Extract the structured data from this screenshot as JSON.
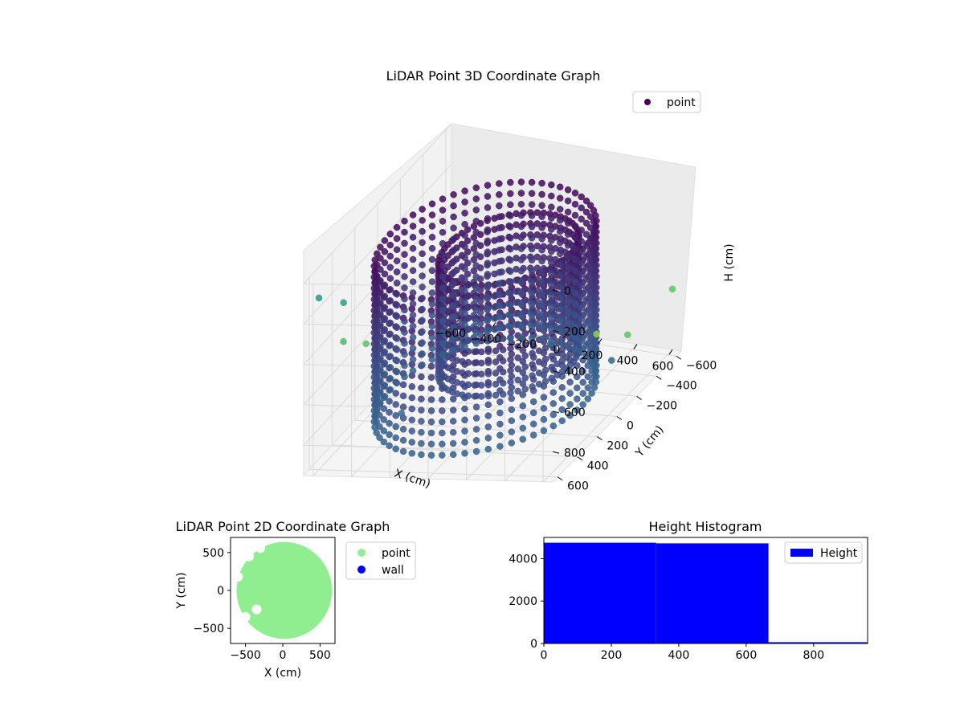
{
  "chart_data": [
    {
      "type": "scatter",
      "projection": "3d",
      "title": "LiDAR Point 3D Coordinate Graph",
      "xlabel": "X (cm)",
      "ylabel": "Y (cm)",
      "zlabel": "H (cm)",
      "xlim": [
        -650,
        650
      ],
      "ylim": [
        -650,
        650
      ],
      "zlim": [
        950,
        0
      ],
      "zaxis_inverted": true,
      "xticks": [
        -600,
        -400,
        -200,
        0,
        200,
        400,
        600
      ],
      "yticks": [
        -600,
        -400,
        -200,
        0,
        200,
        400,
        600
      ],
      "zticks": [
        0,
        200,
        400,
        600,
        800
      ],
      "legend": {
        "position": "top-right",
        "entries": [
          "point"
        ]
      },
      "colormap": "viridis",
      "grid": true,
      "series": [
        {
          "name": "point",
          "rings": [
            {
              "cx": 0,
              "cy": 100,
              "radius": 520,
              "h_top": 80,
              "h_bottom": 900
            },
            {
              "cx": 150,
              "cy": 150,
              "radius": 330,
              "h_top": 80,
              "h_bottom": 650
            }
          ],
          "outliers": [
            {
              "x": -600,
              "y": 600,
              "h": 100
            },
            {
              "x": -500,
              "y": 550,
              "h": 150
            },
            {
              "x": -650,
              "y": 300,
              "h": 500
            },
            {
              "x": -620,
              "y": 150,
              "h": 600
            },
            {
              "x": 600,
              "y": -200,
              "h": 650
            },
            {
              "x": 600,
              "y": -650,
              "h": 650
            },
            {
              "x": -400,
              "y": 200,
              "h": 900
            },
            {
              "x": 400,
              "y": -400,
              "h": 900
            },
            {
              "x": 200,
              "y": -600,
              "h": 900
            },
            {
              "x": 0,
              "y": -500,
              "h": 920
            }
          ]
        }
      ]
    },
    {
      "type": "scatter",
      "title": "LiDAR Point 2D Coordinate Graph",
      "xlabel": "X (cm)",
      "ylabel": "Y (cm)",
      "xlim": [
        -700,
        700
      ],
      "ylim": [
        -700,
        700
      ],
      "xticks": [
        -500,
        0,
        500
      ],
      "yticks": [
        -500,
        0,
        500
      ],
      "legend": {
        "position": "outside-right",
        "entries": [
          "point",
          "wall"
        ]
      },
      "series": [
        {
          "name": "point",
          "color": "#90ee90",
          "disk": {
            "cx": 20,
            "cy": 0,
            "radius": 640
          }
        },
        {
          "name": "wall",
          "color": "#0000ff",
          "points": []
        }
      ]
    },
    {
      "type": "bar",
      "subtype": "histogram",
      "title": "Height Histogram",
      "xlim": [
        0,
        960
      ],
      "ylim": [
        0,
        5000
      ],
      "xticks": [
        0,
        200,
        400,
        600,
        800
      ],
      "yticks": [
        0,
        2000,
        4000
      ],
      "legend": {
        "position": "top-right",
        "entries": [
          "Height"
        ]
      },
      "series": [
        {
          "name": "Height",
          "color": "#0000ff",
          "bins": [
            {
              "x0": 0,
              "x1": 333,
              "count": 4750
            },
            {
              "x0": 333,
              "x1": 666,
              "count": 4720
            },
            {
              "x0": 666,
              "x1": 960,
              "count": 60
            }
          ]
        }
      ]
    }
  ]
}
